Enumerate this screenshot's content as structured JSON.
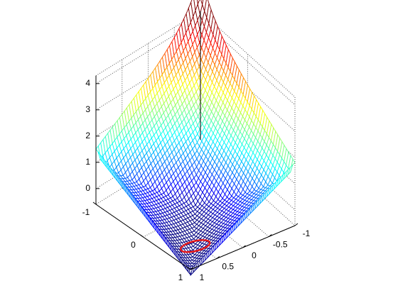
{
  "chart_data": {
    "type": "surface",
    "title": "",
    "xlabel": "",
    "ylabel": "",
    "zlabel": "",
    "xlim": [
      -1,
      1
    ],
    "ylim": [
      -1,
      1
    ],
    "zlim": [
      -0.6,
      4.3
    ],
    "z_ticks": [
      {
        "value": 0,
        "label": "0"
      },
      {
        "value": 1,
        "label": "1"
      },
      {
        "value": 2,
        "label": "2"
      },
      {
        "value": 3,
        "label": "3"
      },
      {
        "value": 4,
        "label": "4"
      }
    ],
    "x_ticks": [
      {
        "value": -1,
        "label": "-1"
      },
      {
        "value": 0,
        "label": "0"
      },
      {
        "value": 1,
        "label": "1"
      }
    ],
    "y_ticks": [
      {
        "value": 1,
        "label": "1"
      },
      {
        "value": 0.5,
        "label": "0.5"
      },
      {
        "value": 0,
        "label": "0"
      },
      {
        "value": -0.5,
        "label": "-0.5"
      },
      {
        "value": -1,
        "label": "-1"
      }
    ],
    "grid": true,
    "colormap": "jet",
    "surface_corners": {
      "x_-1_y_-1": 4.3,
      "x_-1_y_1": 1.5,
      "x_1_y_-1": 1.8,
      "x_1_y_1": -0.6
    },
    "curve": {
      "color": "#e41a1c",
      "description_points": [
        {
          "x": 0.55,
          "y": 0.78,
          "z": -0.6
        },
        {
          "x": 0.8,
          "y": 0.45,
          "z": -0.3
        }
      ]
    }
  }
}
